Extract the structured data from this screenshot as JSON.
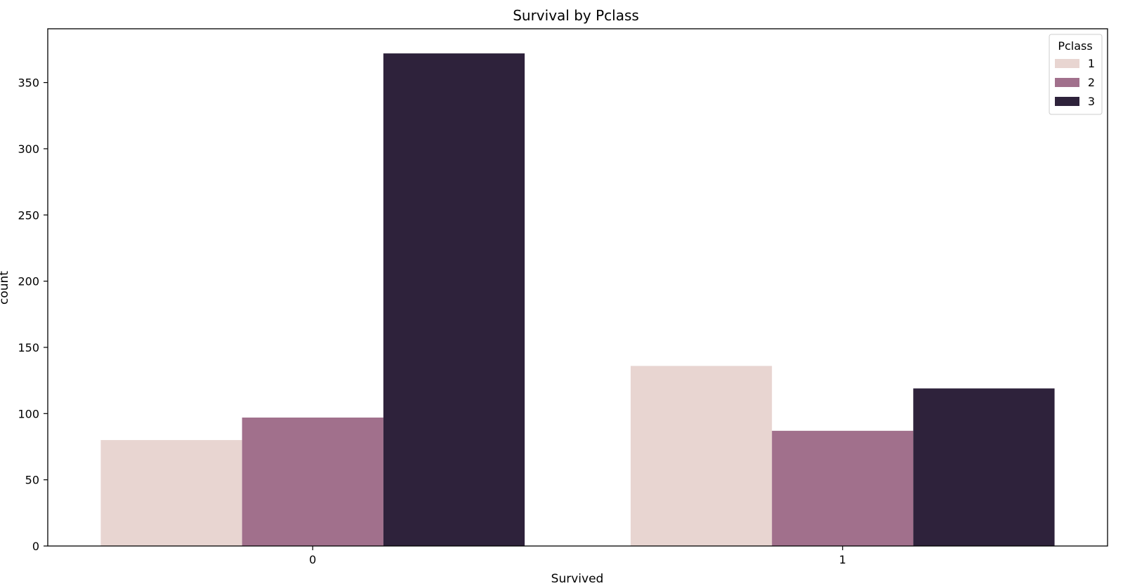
{
  "chart_data": {
    "type": "bar",
    "title": "Survival by Pclass",
    "xlabel": "Survived",
    "ylabel": "count",
    "categories": [
      "0",
      "1"
    ],
    "series": [
      {
        "name": "1",
        "values": [
          80,
          136
        ],
        "color": "#e8d5d1"
      },
      {
        "name": "2",
        "values": [
          97,
          87
        ],
        "color": "#a1708c"
      },
      {
        "name": "3",
        "values": [
          372,
          119
        ],
        "color": "#2e223b"
      }
    ],
    "ylim": [
      0,
      390.6
    ],
    "yticks": [
      0,
      50,
      100,
      150,
      200,
      250,
      300,
      350
    ],
    "legend": {
      "title": "Pclass",
      "placement": "top-right"
    },
    "grid": false
  }
}
